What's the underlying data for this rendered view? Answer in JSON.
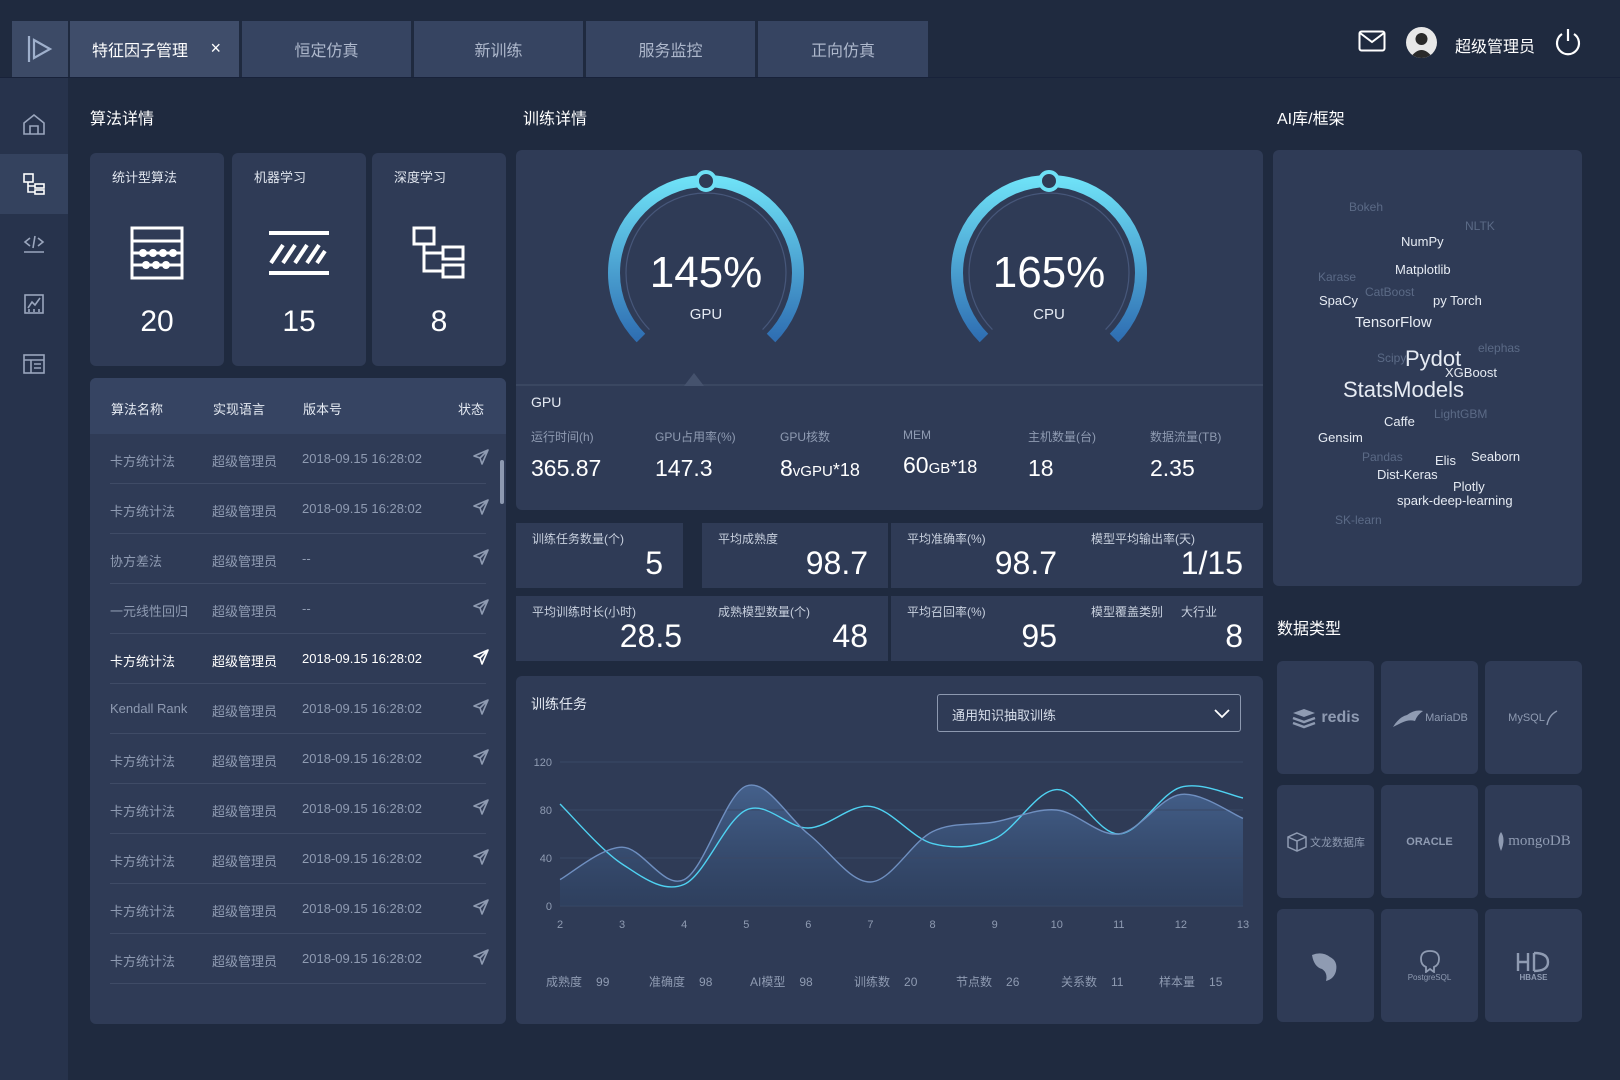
{
  "header": {
    "tabs": [
      {
        "label": "特征因子管理",
        "active": true,
        "close": "×"
      },
      {
        "label": "恒定仿真"
      },
      {
        "label": "新训练"
      },
      {
        "label": "服务监控"
      },
      {
        "label": "正向仿真"
      }
    ],
    "user_name": "超级管理员"
  },
  "sections": {
    "algo": "算法详情",
    "train": "训练详情",
    "ai": "AI库/框架",
    "data_types": "数据类型"
  },
  "algo_cards": [
    {
      "label": "统计型算法",
      "value": "20",
      "icon": "abacus-icon"
    },
    {
      "label": "机器学习",
      "value": "15",
      "icon": "stripes-icon"
    },
    {
      "label": "深度学习",
      "value": "8",
      "icon": "tree-structure-icon"
    }
  ],
  "algo_table": {
    "headers": [
      "算法名称",
      "实现语言",
      "版本号",
      "状态"
    ],
    "rows": [
      {
        "name": "卡方统计法",
        "lang": "超级管理员",
        "version": "2018-09.15 16:28:02"
      },
      {
        "name": "卡方统计法",
        "lang": "超级管理员",
        "version": "2018-09.15 16:28:02"
      },
      {
        "name": "协方差法",
        "lang": "超级管理员",
        "version": "--"
      },
      {
        "name": "一元线性回归",
        "lang": "超级管理员",
        "version": "--"
      },
      {
        "name": "卡方统计法",
        "lang": "超级管理员",
        "version": "2018-09.15 16:28:02",
        "highlight": true
      },
      {
        "name": "Kendall Rank",
        "lang": "超级管理员",
        "version": "2018-09.15 16:28:02"
      },
      {
        "name": "卡方统计法",
        "lang": "超级管理员",
        "version": "2018-09.15 16:28:02"
      },
      {
        "name": "卡方统计法",
        "lang": "超级管理员",
        "version": "2018-09.15 16:28:02"
      },
      {
        "name": "卡方统计法",
        "lang": "超级管理员",
        "version": "2018-09.15 16:28:02"
      },
      {
        "name": "卡方统计法",
        "lang": "超级管理员",
        "version": "2018-09.15 16:28:02"
      },
      {
        "name": "卡方统计法",
        "lang": "超级管理员",
        "version": "2018-09.15 16:28:02"
      }
    ]
  },
  "gauges": [
    {
      "value": "145%",
      "label": "GPU",
      "fraction": 0.72
    },
    {
      "value": "165%",
      "label": "CPU",
      "fraction": 0.82
    }
  ],
  "gpu": {
    "title": "GPU",
    "stats": [
      {
        "k": "运行时间(h)",
        "v": "365.87",
        "unit": ""
      },
      {
        "k": "GPU占用率(%)",
        "v": "147.3",
        "unit": ""
      },
      {
        "k": "GPU核数",
        "v": "8",
        "unit": "vGPU",
        "tail": "*18"
      },
      {
        "k": "MEM",
        "v": "60",
        "unit": "GB",
        "tail": "*18"
      },
      {
        "k": "主机数量(台)",
        "v": "18",
        "unit": ""
      },
      {
        "k": "数据流量(TB)",
        "v": "2.35",
        "unit": ""
      }
    ]
  },
  "metrics": [
    {
      "k": "训练任务数量(个)",
      "v": "5"
    },
    {
      "k": "平均成熟度",
      "v": "98.7"
    },
    {
      "k": "平均准确率(%)",
      "v": "98.7"
    },
    {
      "k": "模型平均输出率(天)",
      "v": "1/15"
    },
    {
      "k": "平均训练时长(小时)",
      "v": "28.5"
    },
    {
      "k": "成熟模型数量(个)",
      "v": "48"
    },
    {
      "k": "平均召回率(%)",
      "v": "95"
    },
    {
      "k": "模型覆盖类别",
      "k2": "大行业",
      "v": "8"
    }
  ],
  "task": {
    "title": "训练任务",
    "select_value": "通用知识抽取训练"
  },
  "chart_data": {
    "type": "line",
    "x": [
      2,
      3,
      4,
      5,
      6,
      7,
      8,
      9,
      10,
      11,
      12,
      13
    ],
    "ylim": [
      0,
      120
    ],
    "yticks": [
      0,
      40,
      80,
      120
    ],
    "series": [
      {
        "values": [
          85,
          35,
          18,
          80,
          65,
          83,
          52,
          56,
          97,
          60,
          99,
          90
        ],
        "color": "#4fd2f2"
      },
      {
        "values": [
          22,
          49,
          22,
          100,
          60,
          20,
          62,
          70,
          80,
          60,
          93,
          73
        ],
        "color": "#6f8fc0"
      }
    ],
    "legend": [
      {
        "k": "成熟度",
        "v": "99"
      },
      {
        "k": "准确度",
        "v": "98"
      },
      {
        "k": "AI模型",
        "v": "98"
      },
      {
        "k": "训练数",
        "v": "20"
      },
      {
        "k": "节点数",
        "v": "26"
      },
      {
        "k": "关系数",
        "v": "11"
      },
      {
        "k": "样本量",
        "v": "15"
      }
    ]
  },
  "ai_words": [
    {
      "t": "Bokeh",
      "dim": true
    },
    {
      "t": "NLTK",
      "dim": true
    },
    {
      "t": "NumPy"
    },
    {
      "t": "Matplotlib"
    },
    {
      "t": "Karase",
      "dim": true
    },
    {
      "t": "CatBoost",
      "dim": true
    },
    {
      "t": "SpaCy"
    },
    {
      "t": "py Torch"
    },
    {
      "t": "TensorFlow"
    },
    {
      "t": "elephas",
      "dim": true
    },
    {
      "t": "Scipy",
      "dim": true
    },
    {
      "t": "Pydot"
    },
    {
      "t": "XGBoost"
    },
    {
      "t": "StatsModels"
    },
    {
      "t": "LightGBM",
      "dim": true
    },
    {
      "t": "Caffe"
    },
    {
      "t": "Gensim"
    },
    {
      "t": "Pandas",
      "dim": true
    },
    {
      "t": "Elis"
    },
    {
      "t": "Seaborn"
    },
    {
      "t": "Dist-Keras"
    },
    {
      "t": "Plotly"
    },
    {
      "t": "spark-deep-learning"
    },
    {
      "t": "SK-learn",
      "dim": true
    }
  ],
  "databases": [
    {
      "label": "redis"
    },
    {
      "label": "MariaDB"
    },
    {
      "label": "MySQL"
    },
    {
      "label": "文龙数据库"
    },
    {
      "label": "ORACLE"
    },
    {
      "label": "mongoDB"
    },
    {
      "label": "",
      "icon": "ostrich-db-icon"
    },
    {
      "label": "PostgreSQL"
    },
    {
      "label": "HBASE"
    }
  ]
}
